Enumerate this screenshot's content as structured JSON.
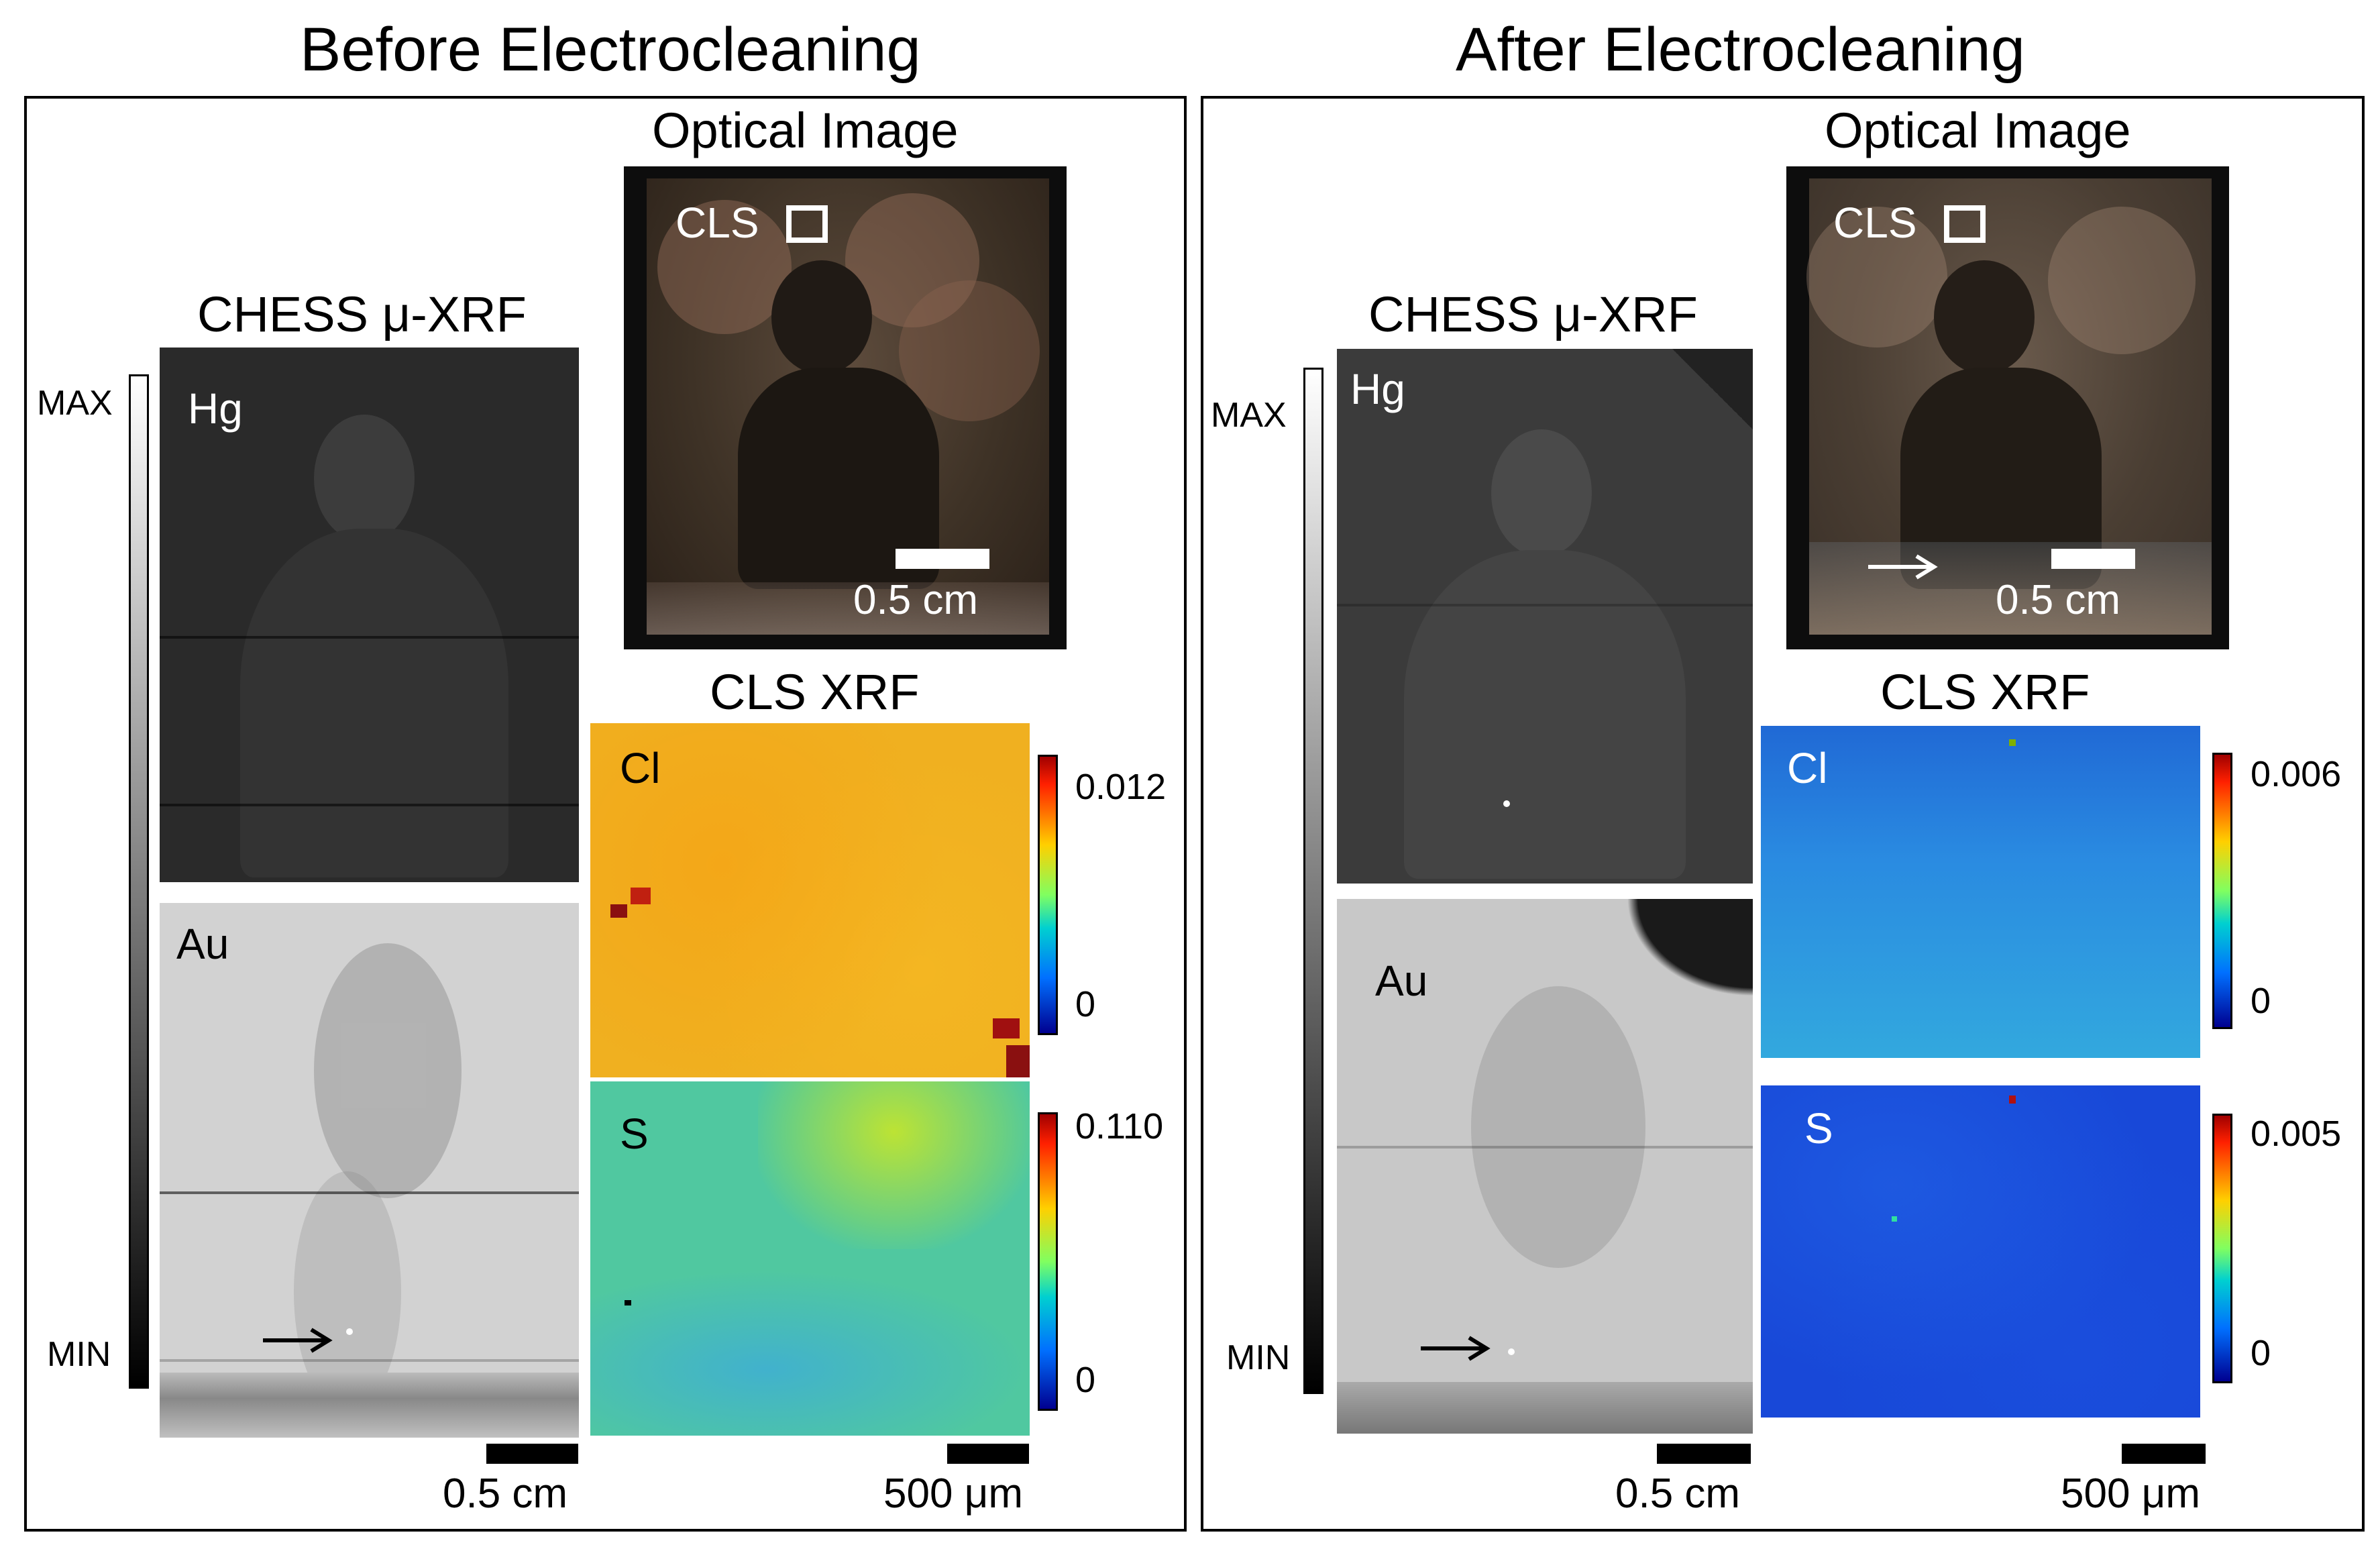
{
  "panels": {
    "before": {
      "title": "Before Electrocleaning",
      "optical_title": "Optical Image",
      "cls_box_label": "CLS",
      "optical_scale": "0.5 cm",
      "chess_title": "CHESS μ-XRF",
      "colorbar_max": "MAX",
      "colorbar_min": "MIN",
      "hg_label": "Hg",
      "au_label": "Au",
      "chess_scale": "0.5 cm",
      "cls_title": "CLS XRF",
      "cl_label": "Cl",
      "cl_max": "0.012",
      "cl_min": "0",
      "s_label": "S",
      "s_max": "0.110",
      "s_min": "0",
      "cls_scale": "500 μm"
    },
    "after": {
      "title": "After Electrocleaning",
      "optical_title": "Optical Image",
      "cls_box_label": "CLS",
      "optical_scale": "0.5 cm",
      "chess_title": "CHESS μ-XRF",
      "colorbar_max": "MAX",
      "colorbar_min": "MIN",
      "hg_label": "Hg",
      "au_label": "Au",
      "chess_scale": "0.5 cm",
      "cls_title": "CLS XRF",
      "cl_label": "Cl",
      "cl_max": "0.006",
      "cl_min": "0",
      "s_label": "S",
      "s_max": "0.005",
      "s_min": "0",
      "cls_scale": "500 μm"
    }
  },
  "colors": {
    "hg_map": "#2a2a2a",
    "au_map": "#d2d2d2",
    "cl_before": "#f0b020",
    "s_before": "#50c8a0",
    "cl_after": "#2a8ee0",
    "s_after": "#1848d8",
    "optical": "#3a2e22"
  }
}
